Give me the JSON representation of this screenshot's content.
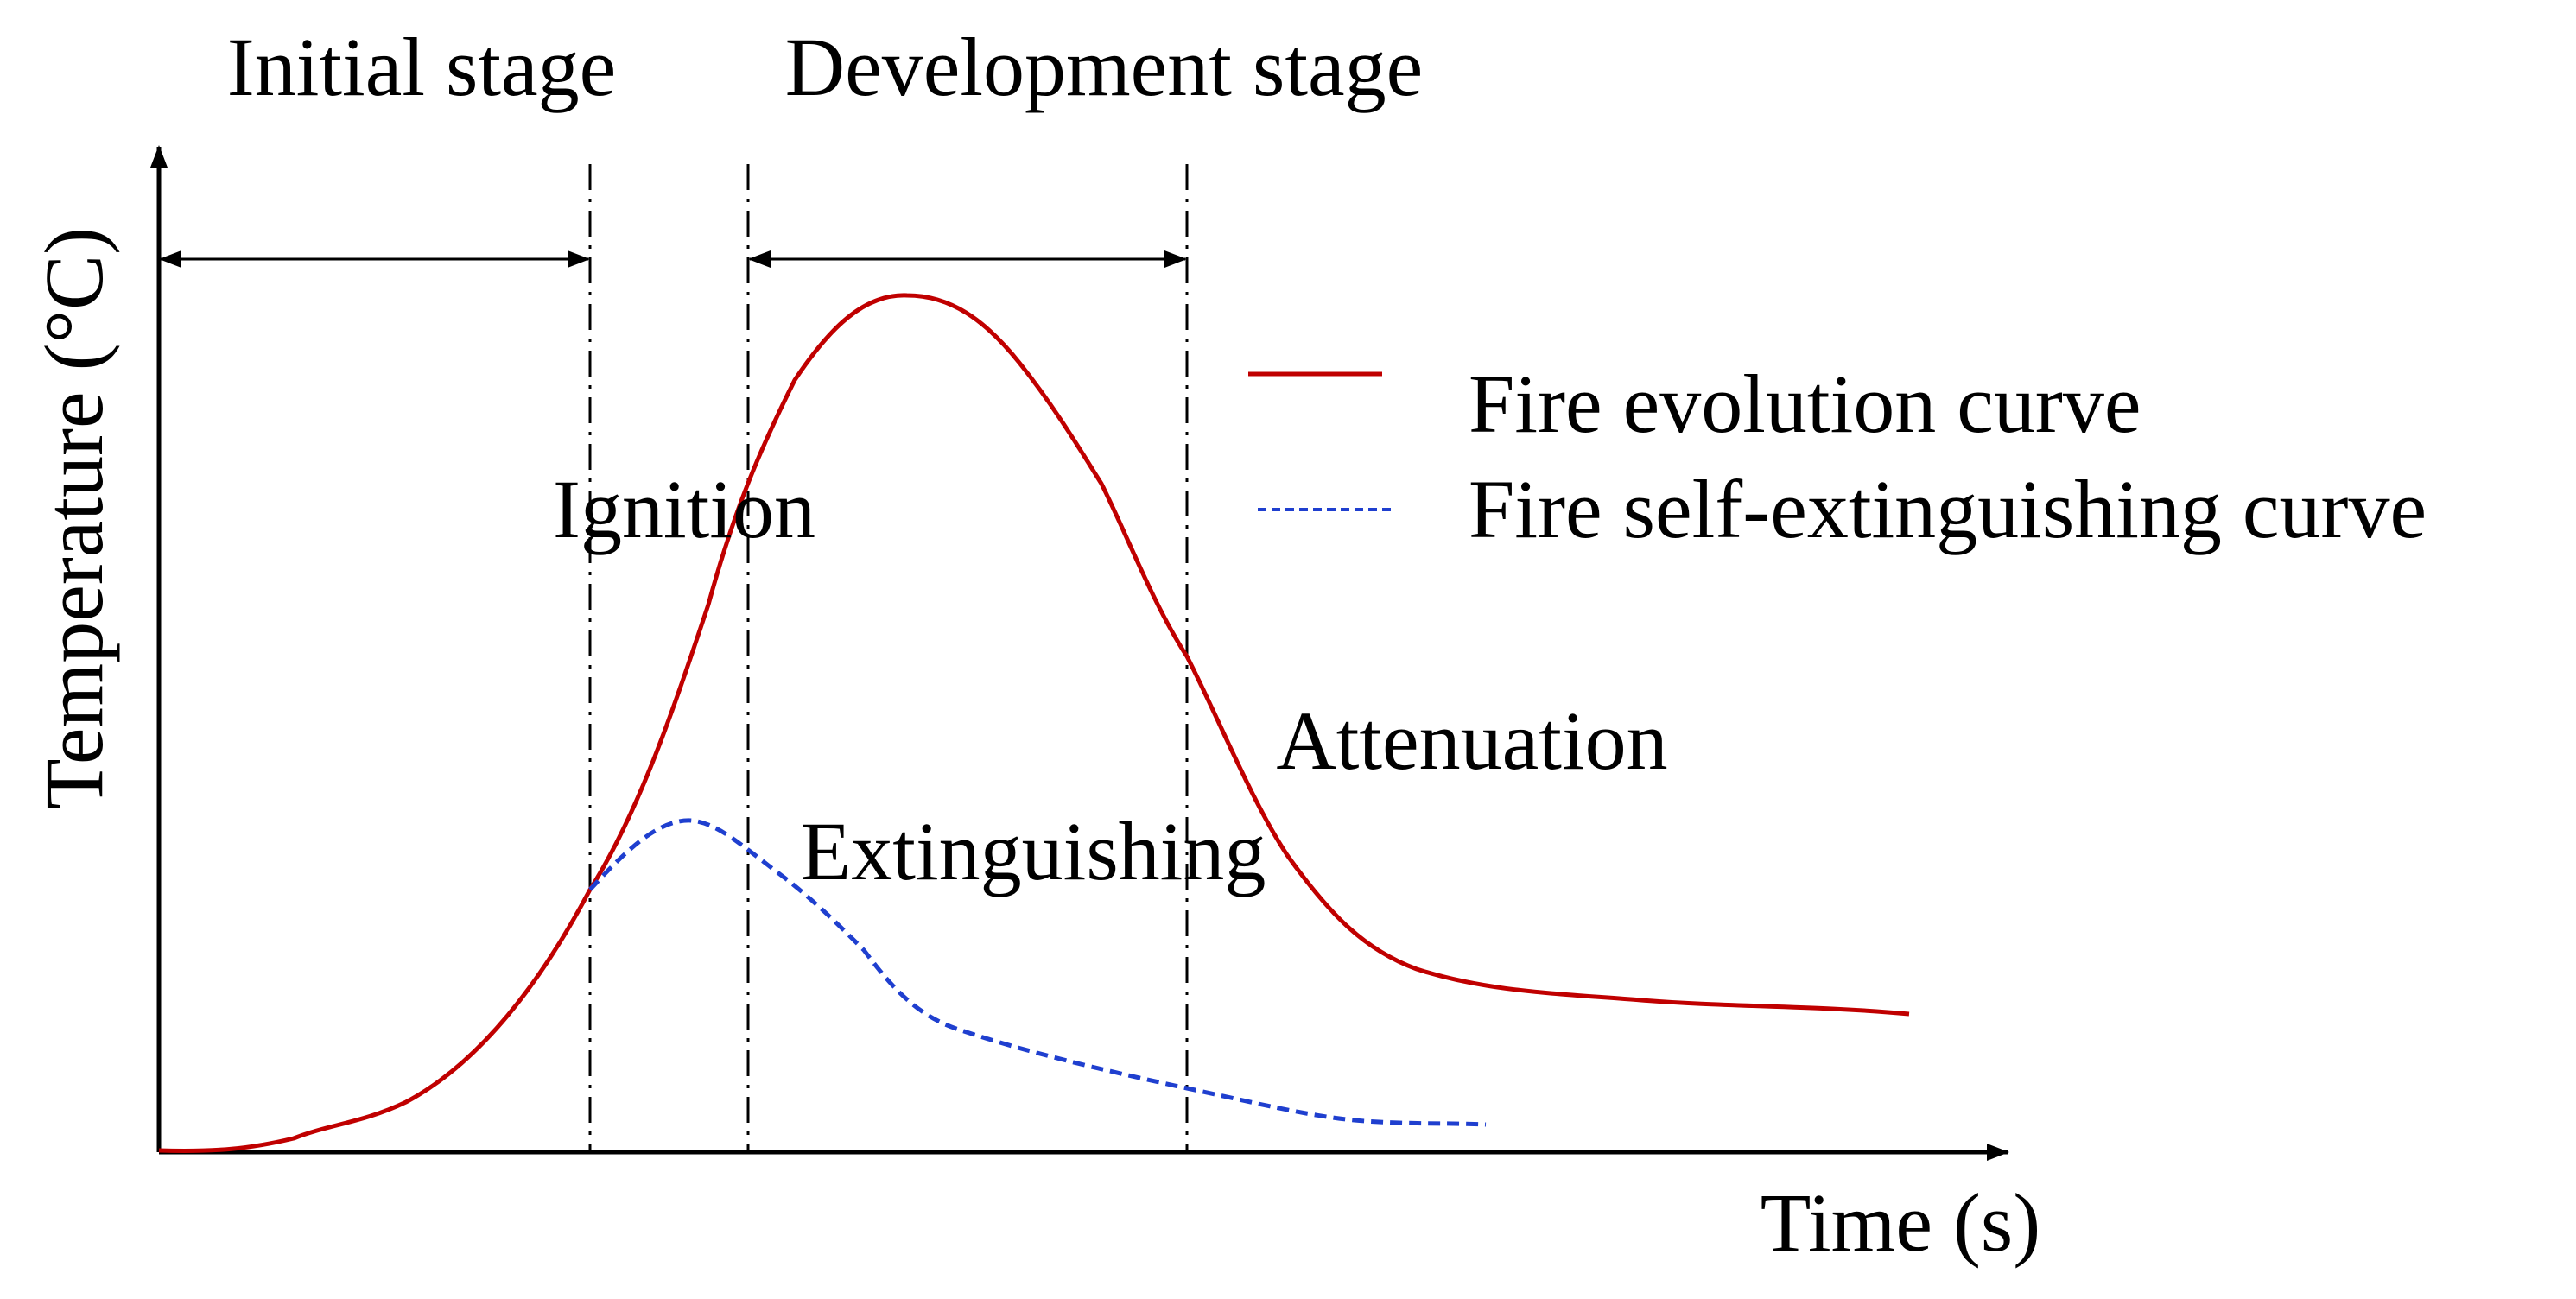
{
  "axes": {
    "y_label": "Temperature (°C)",
    "x_label": "Time (s)"
  },
  "stages": {
    "initial": "Initial stage",
    "development": "Development stage"
  },
  "phases": {
    "ignition": "Ignition",
    "extinguishing": "Extinguishing",
    "attenuation": "Attenuation"
  },
  "legend": {
    "position": "top-right",
    "items": [
      {
        "label": "Fire evolution curve",
        "color": "#c00000",
        "style": "solid"
      },
      {
        "label": "Fire self-extinguishing curve",
        "color": "#1f3fcf",
        "style": "dashed"
      }
    ]
  },
  "colors": {
    "axis": "#000000",
    "fire_evolution": "#c00000",
    "self_extinguishing": "#1f3fcf"
  }
}
